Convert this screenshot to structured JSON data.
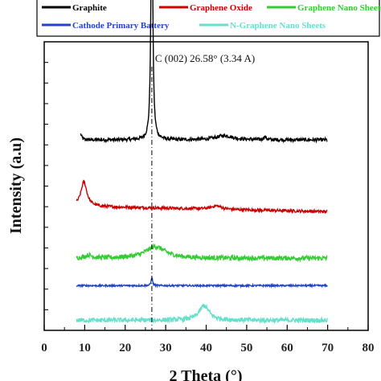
{
  "chart_data": {
    "type": "line",
    "title": "",
    "xlabel": "2 Theta (°)",
    "ylabel": "Intensity (a.u)",
    "xlim": [
      0,
      80
    ],
    "xticks": [
      0,
      10,
      20,
      30,
      40,
      50,
      60,
      70,
      80
    ],
    "y_ticks_labeled": false,
    "grid": false,
    "legend_position": "top",
    "annotation": {
      "text": "C (002) 26.58° (3.34 A)",
      "x": 26.58
    },
    "series": [
      {
        "name": "Graphite",
        "color": "#000000",
        "x_range": [
          9,
          70
        ],
        "baseline": 0.66,
        "noise": 0.006,
        "peaks": [
          {
            "x": 9.0,
            "height": 0.02,
            "width": 0.3
          },
          {
            "x": 26.58,
            "height": 0.95,
            "width": 0.25
          },
          {
            "x": 44.5,
            "height": 0.015,
            "width": 2.5
          },
          {
            "x": 54.5,
            "height": 0.01,
            "width": 0.4
          }
        ]
      },
      {
        "name": "Graphene Oxide",
        "color": "#cc0000",
        "x_range": [
          8,
          70
        ],
        "baseline": 0.43,
        "noise": 0.005,
        "slope": -0.0003,
        "peaks": [
          {
            "x": 9.8,
            "height": 0.085,
            "width": 0.9
          },
          {
            "x": 42.5,
            "height": 0.012,
            "width": 1.5
          }
        ]
      },
      {
        "name": "Graphene Nano Sheets",
        "color": "#33cc33",
        "x_range": [
          8,
          70
        ],
        "baseline": 0.25,
        "noise": 0.008,
        "peaks": [
          {
            "x": 27.5,
            "height": 0.04,
            "width": 3.0
          },
          {
            "x": 11.0,
            "height": 0.01,
            "width": 1.0
          }
        ]
      },
      {
        "name": "Cathode Primary Battery",
        "color": "#2244cc",
        "x_range": [
          8,
          70
        ],
        "baseline": 0.155,
        "noise": 0.003,
        "peaks": [
          {
            "x": 26.58,
            "height": 0.03,
            "width": 0.2
          }
        ]
      },
      {
        "name": "N-Graphene Nano Sheets",
        "color": "#66e0cc",
        "x_range": [
          8,
          70
        ],
        "baseline": 0.035,
        "noise": 0.008,
        "peaks": [
          {
            "x": 39.5,
            "height": 0.05,
            "width": 1.5
          }
        ]
      }
    ]
  }
}
